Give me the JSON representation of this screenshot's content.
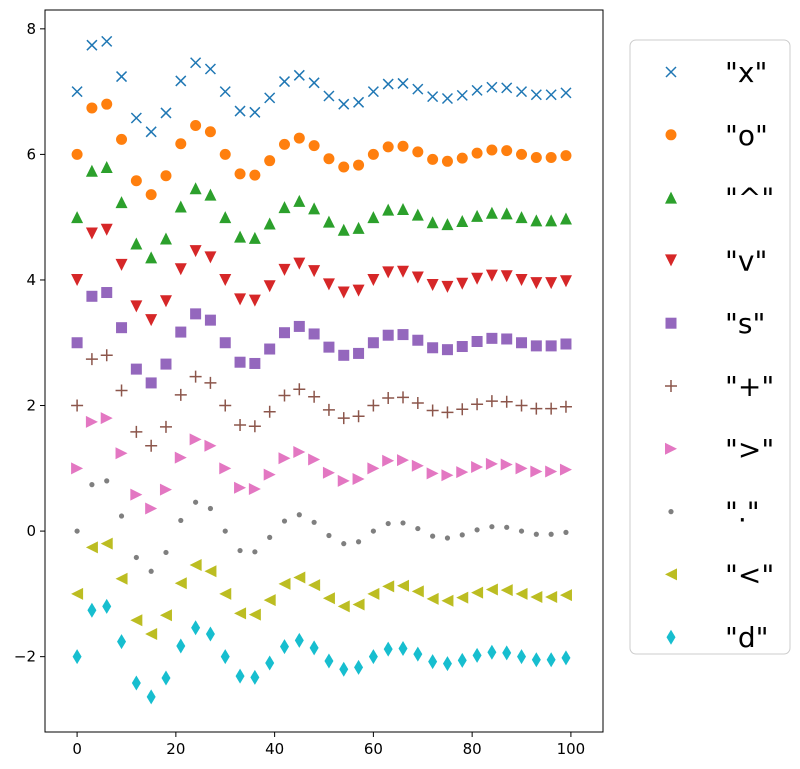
{
  "chart_data": {
    "type": "scatter",
    "title": "",
    "xlabel": "",
    "ylabel": "",
    "xlim": [
      -6.5,
      106.5
    ],
    "ylim": [
      -3.2,
      8.3
    ],
    "x_ticks": [
      0,
      20,
      40,
      60,
      80,
      100
    ],
    "y_ticks": [
      -2,
      0,
      2,
      4,
      6,
      8
    ],
    "x_tick_labels": [
      "0",
      "20",
      "40",
      "60",
      "80",
      "100"
    ],
    "y_tick_labels": [
      "−2",
      "0",
      "2",
      "4",
      "6",
      "8"
    ],
    "grid": false,
    "legend_position": "outside-right",
    "x": [
      0,
      3,
      6,
      9,
      12,
      15,
      18,
      21,
      24,
      27,
      30,
      33,
      36,
      39,
      42,
      45,
      48,
      51,
      54,
      57,
      60,
      63,
      66,
      69,
      72,
      75,
      78,
      81,
      84,
      87,
      90,
      93,
      96,
      99
    ],
    "base_wave": [
      0.0,
      0.74,
      0.8,
      0.24,
      -0.42,
      -0.64,
      -0.34,
      0.17,
      0.46,
      0.36,
      0.0,
      -0.31,
      -0.33,
      -0.1,
      0.16,
      0.26,
      0.14,
      -0.07,
      -0.2,
      -0.17,
      0.0,
      0.12,
      0.13,
      0.04,
      -0.08,
      -0.11,
      -0.06,
      0.02,
      0.07,
      0.06,
      0.0,
      -0.05,
      -0.05,
      -0.02
    ],
    "series": [
      {
        "name": "\"x\"",
        "marker": "x",
        "offset": 7,
        "color": "#1f77b4"
      },
      {
        "name": "\"o\"",
        "marker": "o",
        "offset": 6,
        "color": "#ff7f0e"
      },
      {
        "name": "\"^\"",
        "marker": "^",
        "offset": 5,
        "color": "#2ca02c"
      },
      {
        "name": "\"v\"",
        "marker": "v",
        "offset": 4,
        "color": "#d62728"
      },
      {
        "name": "\"s\"",
        "marker": "s",
        "offset": 3,
        "color": "#9467bd"
      },
      {
        "name": "\"+\"",
        "marker": "+",
        "offset": 2,
        "color": "#8c564b"
      },
      {
        "name": "\">\"",
        "marker": ">",
        "offset": 1,
        "color": "#e377c2"
      },
      {
        "name": "\".\"",
        "marker": ".",
        "offset": 0,
        "color": "#7f7f7f"
      },
      {
        "name": "\"<\"",
        "marker": "<",
        "offset": -1,
        "color": "#bcbd22"
      },
      {
        "name": "\"d\"",
        "marker": "d",
        "offset": -2,
        "color": "#17becf"
      }
    ]
  }
}
